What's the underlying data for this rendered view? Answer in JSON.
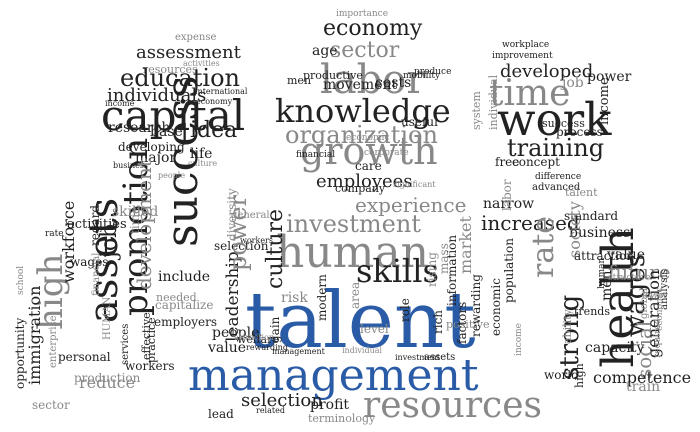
{
  "palette": {
    "dark": "#222222",
    "mid": "#444444",
    "grey": "#888888",
    "light": "#aaaaaa",
    "blue": "#2a5ba6"
  },
  "words": [
    [
      "importance",
      "grey"
    ],
    [
      "economy",
      "dark"
    ],
    [
      "sector",
      "grey"
    ],
    [
      "labor",
      "grey"
    ],
    [
      "knowledge",
      "dark"
    ],
    [
      "organization",
      "grey"
    ],
    [
      "growth",
      "grey"
    ],
    [
      "employees",
      "dark"
    ],
    [
      "age",
      "dark"
    ],
    [
      "men",
      "dark"
    ],
    [
      "productive",
      "dark"
    ],
    [
      "movement",
      "dark"
    ],
    [
      "costs",
      "dark"
    ],
    [
      "mobility",
      "dark"
    ],
    [
      "produce",
      "dark"
    ],
    [
      "useful",
      "dark"
    ],
    [
      "care",
      "dark"
    ],
    [
      "financial",
      "dark"
    ],
    [
      "corporate",
      "grey"
    ],
    [
      "economic",
      "grey"
    ],
    [
      "expense",
      "grey"
    ],
    [
      "assessment",
      "dark"
    ],
    [
      "resources",
      "grey"
    ],
    [
      "activities",
      "grey"
    ],
    [
      "education",
      "dark"
    ],
    [
      "individuals",
      "dark"
    ],
    [
      "international",
      "dark"
    ],
    [
      "economy",
      "dark"
    ],
    [
      "capital",
      "dark"
    ],
    [
      "research",
      "dark"
    ],
    [
      "base",
      "dark"
    ],
    [
      "idea",
      "dark"
    ],
    [
      "developing",
      "dark"
    ],
    [
      "major",
      "dark"
    ],
    [
      "life",
      "dark"
    ],
    [
      "business",
      "dark"
    ],
    [
      "culture",
      "grey"
    ],
    [
      "success",
      "dark"
    ],
    [
      "income",
      "dark"
    ],
    [
      "people",
      "grey"
    ],
    [
      "workplace",
      "dark"
    ],
    [
      "improvement",
      "dark"
    ],
    [
      "developed",
      "dark"
    ],
    [
      "time",
      "grey"
    ],
    [
      "job",
      "grey"
    ],
    [
      "power",
      "dark"
    ],
    [
      "work",
      "dark"
    ],
    [
      "success",
      "dark"
    ],
    [
      "income",
      "dark"
    ],
    [
      "training",
      "dark"
    ],
    [
      "process",
      "dark"
    ],
    [
      "system",
      "grey"
    ],
    [
      "individual",
      "grey"
    ],
    [
      "free",
      "dark"
    ],
    [
      "concept",
      "dark"
    ],
    [
      "investment",
      "grey"
    ],
    [
      "human",
      "grey"
    ],
    [
      "experience",
      "grey"
    ],
    [
      "company",
      "dark"
    ],
    [
      "significant",
      "grey"
    ],
    [
      "skills",
      "dark"
    ],
    [
      "culture",
      "dark"
    ],
    [
      "risk",
      "grey"
    ],
    [
      "area",
      "grey"
    ],
    [
      "rising",
      "grey"
    ],
    [
      "mass",
      "grey"
    ],
    [
      "market",
      "grey"
    ],
    [
      "talent",
      "blue"
    ],
    [
      "management",
      "blue"
    ],
    [
      "resources",
      "grey"
    ],
    [
      "selection",
      "dark"
    ],
    [
      "profit",
      "dark"
    ],
    [
      "leadership",
      "dark"
    ],
    [
      "people",
      "dark"
    ],
    [
      "value",
      "dark"
    ],
    [
      "welfare",
      "dark"
    ],
    [
      "lead",
      "dark"
    ],
    [
      "gain",
      "dark"
    ],
    [
      "modern",
      "dark"
    ],
    [
      "role",
      "dark"
    ],
    [
      "level",
      "grey"
    ],
    [
      "rich",
      "dark"
    ],
    [
      "positive",
      "grey"
    ],
    [
      "rewarding",
      "dark"
    ],
    [
      "economic",
      "dark"
    ],
    [
      "factors",
      "dark"
    ],
    [
      "information",
      "dark"
    ],
    [
      "terminology",
      "grey"
    ],
    [
      "assets",
      "dark"
    ],
    [
      "investment",
      "dark"
    ],
    [
      "individual",
      "grey"
    ],
    [
      "management",
      "dark"
    ],
    [
      "related",
      "dark"
    ],
    [
      "workers",
      "dark"
    ],
    [
      "rewarding",
      "dark"
    ],
    [
      "attraction",
      "grey"
    ],
    [
      "selection",
      "dark"
    ],
    [
      "power",
      "grey"
    ],
    [
      "diversity",
      "grey"
    ],
    [
      "general",
      "grey"
    ],
    [
      "high",
      "grey"
    ],
    [
      "assets",
      "dark"
    ],
    [
      "job",
      "dark"
    ],
    [
      "promotion",
      "dark"
    ],
    [
      "development",
      "grey"
    ],
    [
      "workforce",
      "dark"
    ],
    [
      "activities",
      "dark"
    ],
    [
      "wages",
      "dark"
    ],
    [
      "regard",
      "dark"
    ],
    [
      "immigration",
      "dark"
    ],
    [
      "opportunity",
      "dark"
    ],
    [
      "school",
      "grey"
    ],
    [
      "sector",
      "grey"
    ],
    [
      "personal",
      "dark"
    ],
    [
      "production",
      "grey"
    ],
    [
      "reduce",
      "grey"
    ],
    [
      "workers",
      "dark"
    ],
    [
      "effective",
      "dark"
    ],
    [
      "capitalize",
      "grey"
    ],
    [
      "include",
      "dark"
    ],
    [
      "needed",
      "grey"
    ],
    [
      "employers",
      "dark"
    ],
    [
      "practice",
      "dark"
    ],
    [
      "services",
      "dark"
    ],
    [
      "financial",
      "grey"
    ],
    [
      "HUMAN",
      "grey"
    ],
    [
      "enterprise",
      "grey"
    ],
    [
      "skilled",
      "grey"
    ],
    [
      "rate",
      "dark"
    ],
    [
      "time",
      "grey"
    ],
    [
      "difference",
      "dark"
    ],
    [
      "advanced",
      "dark"
    ],
    [
      "talent",
      "grey"
    ],
    [
      "narrow",
      "dark"
    ],
    [
      "standard",
      "dark"
    ],
    [
      "increased",
      "dark"
    ],
    [
      "rate",
      "grey"
    ],
    [
      "business",
      "dark"
    ],
    [
      "society",
      "grey"
    ],
    [
      "attraction",
      "dark"
    ],
    [
      "strong",
      "dark"
    ],
    [
      "health",
      "dark"
    ],
    [
      "value",
      "dark"
    ],
    [
      "future",
      "grey"
    ],
    [
      "wages",
      "dark"
    ],
    [
      "social",
      "grey"
    ],
    [
      "generation",
      "dark"
    ],
    [
      "capacity",
      "dark"
    ],
    [
      "competence",
      "dark"
    ],
    [
      "men",
      "dark"
    ],
    [
      "train",
      "grey"
    ],
    [
      "high",
      "dark"
    ],
    [
      "ability",
      "grey"
    ],
    [
      "world",
      "dark"
    ],
    [
      "population",
      "dark"
    ],
    [
      "analysis",
      "dark"
    ],
    [
      "global",
      "grey"
    ],
    [
      "economic",
      "grey"
    ],
    [
      "lower",
      "grey"
    ],
    [
      "required",
      "grey"
    ],
    [
      "structure",
      "grey"
    ],
    [
      "human",
      "dark"
    ],
    [
      "labor",
      "grey"
    ],
    [
      "trends",
      "dark"
    ],
    [
      "income",
      "grey"
    ],
    [
      "decision",
      "grey"
    ]
  ]
}
